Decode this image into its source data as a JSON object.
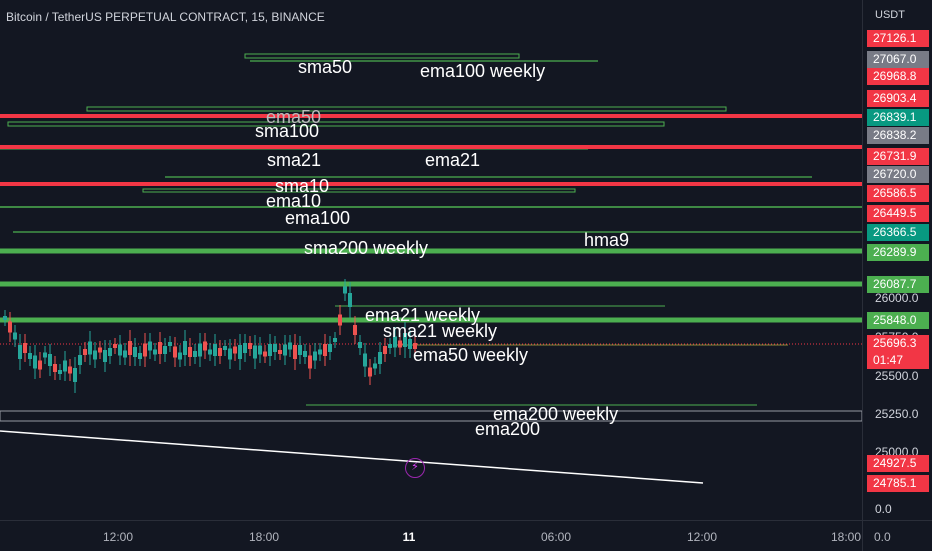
{
  "chart_title": "Bitcoin / TetherUS PERPETUAL CONTRACT, 15, BINANCE",
  "axis": {
    "currency": "USDT",
    "ticks": [
      "26000.0",
      "25750.0",
      "25500.0",
      "25250.0",
      "25000.0",
      "0.0"
    ],
    "price_tags": [
      {
        "value": "27126.1",
        "color": "#f23645"
      },
      {
        "value": "27067.0",
        "color": "#787b86"
      },
      {
        "value": "26968.8",
        "color": "#f23645"
      },
      {
        "value": "26903.4",
        "color": "#f23645"
      },
      {
        "value": "26839.1",
        "color": "#089981"
      },
      {
        "value": "26838.2",
        "color": "#787b86"
      },
      {
        "value": "26731.9",
        "color": "#f23645"
      },
      {
        "value": "26720.0",
        "color": "#787b86"
      },
      {
        "value": "26586.5",
        "color": "#f23645"
      },
      {
        "value": "26449.5",
        "color": "#f23645"
      },
      {
        "value": "26366.5",
        "color": "#089981"
      },
      {
        "value": "26289.9",
        "color": "#4caf50"
      },
      {
        "value": "26087.7",
        "color": "#4caf50"
      },
      {
        "value": "25848.0",
        "color": "#4caf50"
      },
      {
        "value": "25696.3",
        "color": "#f23645"
      },
      {
        "value": "01:47",
        "color": "#f23645"
      },
      {
        "value": "24927.5",
        "color": "#f23645"
      },
      {
        "value": "24785.1",
        "color": "#f23645"
      }
    ]
  },
  "time_axis": {
    "labels": [
      "12:00",
      "18:00",
      "11",
      "06:00",
      "12:00",
      "18:00"
    ],
    "corner_value": "0.0"
  },
  "levels": {
    "sma50_weekly_top": "sma50",
    "ema100_weekly": "ema100 weekly",
    "ema50": "ema50",
    "sma100": "sma100",
    "sma21": "sma21",
    "ema21": "ema21",
    "sma10": "sma10",
    "ema10": "ema10",
    "ema100": "ema100",
    "sma200_weekly": "sma200 weekly",
    "hma9": "hma9",
    "ema21_weekly": "ema21 weekly",
    "sma21_weekly": "sma21 weekly",
    "ema50_weekly": "ema50 weekly",
    "ema200_weekly": "ema200 weekly",
    "ema200": "ema200"
  },
  "colors": {
    "background": "#131722",
    "up": "#26a69a",
    "down": "#ef5350",
    "level_green": "#4caf50",
    "level_red": "#f23645",
    "trendline": "#ffffff"
  },
  "icons": [
    "lightning-icon"
  ]
}
